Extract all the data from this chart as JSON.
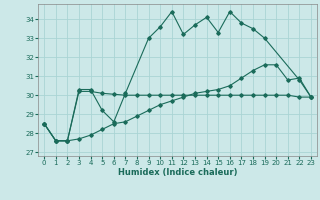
{
  "line1_x": [
    0,
    1,
    2,
    3,
    4,
    5,
    6,
    7,
    9,
    10,
    11,
    12,
    13,
    14,
    15,
    16,
    17,
    18,
    19,
    22,
    23
  ],
  "line1_y": [
    28.5,
    27.6,
    27.6,
    30.3,
    30.3,
    29.2,
    28.6,
    30.1,
    33.0,
    33.6,
    34.4,
    33.2,
    33.7,
    34.1,
    33.3,
    34.4,
    33.8,
    33.5,
    33.0,
    30.8,
    29.9
  ],
  "line2_x": [
    0,
    1,
    2,
    3,
    4,
    5,
    6,
    7,
    8,
    9,
    10,
    11,
    12,
    13,
    14,
    15,
    16,
    17,
    18,
    19,
    20,
    21,
    22,
    23
  ],
  "line2_y": [
    28.5,
    27.6,
    27.6,
    30.2,
    30.2,
    30.1,
    30.05,
    30.0,
    30.0,
    30.0,
    30.0,
    30.0,
    30.0,
    30.0,
    30.0,
    30.0,
    30.0,
    30.0,
    30.0,
    30.0,
    30.0,
    30.0,
    29.9,
    29.9
  ],
  "line3_x": [
    0,
    1,
    2,
    3,
    4,
    5,
    6,
    7,
    8,
    9,
    10,
    11,
    12,
    13,
    14,
    15,
    16,
    17,
    18,
    19,
    20,
    21,
    22,
    23
  ],
  "line3_y": [
    28.5,
    27.6,
    27.6,
    27.7,
    27.9,
    28.2,
    28.5,
    28.6,
    28.9,
    29.2,
    29.5,
    29.7,
    29.9,
    30.1,
    30.2,
    30.3,
    30.5,
    30.9,
    31.3,
    31.6,
    31.6,
    30.8,
    30.9,
    29.9
  ],
  "color": "#1a6b5a",
  "bg_color": "#cce8e8",
  "grid_color": "#aad4d4",
  "xlim": [
    -0.5,
    23.5
  ],
  "ylim": [
    26.8,
    34.8
  ],
  "yticks": [
    27,
    28,
    29,
    30,
    31,
    32,
    33,
    34
  ],
  "xticks": [
    0,
    1,
    2,
    3,
    4,
    5,
    6,
    7,
    8,
    9,
    10,
    11,
    12,
    13,
    14,
    15,
    16,
    17,
    18,
    19,
    20,
    21,
    22,
    23
  ],
  "xlabel": "Humidex (Indice chaleur)"
}
